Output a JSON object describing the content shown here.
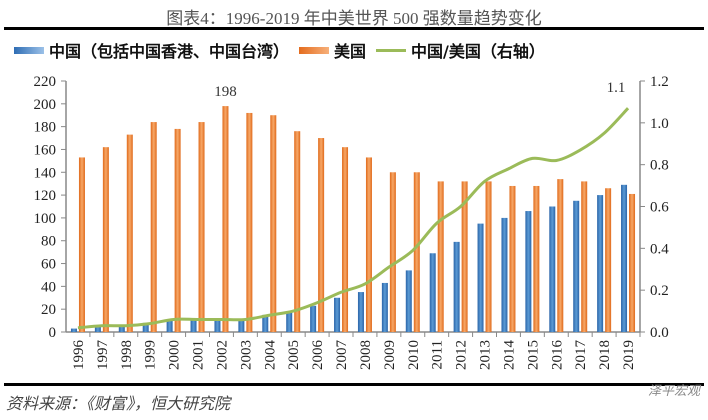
{
  "header": {
    "title": "图表4：1996-2019 年中美世界 500 强数量趋势变化"
  },
  "footer": {
    "source": "资料来源：《财富》，恒大研究院",
    "watermark": "泽平宏观"
  },
  "colors": {
    "china": "#2e75c0",
    "us": "#ed7d31",
    "ratio": "#9bbb59"
  },
  "chart_data": {
    "type": "bar",
    "title": "图表4：1996-2019 年中美世界 500 强数量趋势变化",
    "categories": [
      "1996",
      "1997",
      "1998",
      "1999",
      "2000",
      "2001",
      "2002",
      "2003",
      "2004",
      "2005",
      "2006",
      "2007",
      "2008",
      "2009",
      "2010",
      "2011",
      "2012",
      "2013",
      "2014",
      "2015",
      "2016",
      "2017",
      "2018",
      "2019"
    ],
    "series": [
      {
        "name": "中国（包括中国香港、中国台湾）",
        "type": "bar",
        "axis": "left",
        "values": [
          3,
          5,
          6,
          8,
          10,
          11,
          11,
          11,
          15,
          18,
          23,
          30,
          35,
          43,
          54,
          69,
          79,
          95,
          100,
          106,
          110,
          115,
          120,
          129
        ]
      },
      {
        "name": "美国",
        "type": "bar",
        "axis": "left",
        "values": [
          153,
          162,
          173,
          184,
          178,
          184,
          198,
          192,
          190,
          176,
          170,
          162,
          153,
          140,
          140,
          132,
          132,
          132,
          128,
          128,
          134,
          132,
          126,
          121
        ]
      },
      {
        "name": "中国/美国（右轴）",
        "type": "line",
        "axis": "right",
        "values": [
          0.02,
          0.03,
          0.03,
          0.04,
          0.06,
          0.06,
          0.06,
          0.06,
          0.08,
          0.1,
          0.14,
          0.19,
          0.23,
          0.31,
          0.39,
          0.52,
          0.6,
          0.72,
          0.78,
          0.83,
          0.82,
          0.87,
          0.95,
          1.07
        ]
      }
    ],
    "annotations": [
      {
        "series": "美国",
        "category": "2002",
        "text": "198"
      },
      {
        "series": "中国/美国（右轴）",
        "category": "2019",
        "text": "1.1"
      }
    ],
    "yleft": {
      "ylim": [
        0,
        220
      ],
      "ticks": [
        "0",
        "20",
        "40",
        "60",
        "80",
        "100",
        "120",
        "140",
        "160",
        "180",
        "200",
        "220"
      ]
    },
    "yright": {
      "ylim": [
        0,
        1.2
      ],
      "ticks": [
        "0.0",
        "0.2",
        "0.4",
        "0.6",
        "0.8",
        "1.0",
        "1.2"
      ]
    },
    "xlabel": "",
    "ylabel": "",
    "legend": {
      "position": "top",
      "entries": [
        "中国（包括中国香港、中国台湾）",
        "美国",
        "中国/美国（右轴）"
      ]
    },
    "grid": false
  }
}
